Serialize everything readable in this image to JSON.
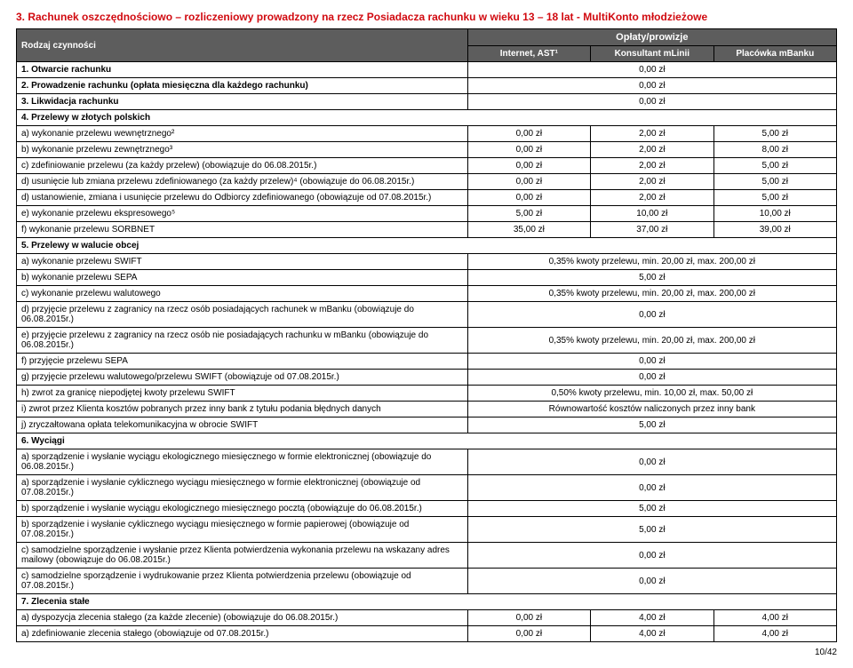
{
  "title": "3. Rachunek oszczędnościowo – rozliczeniowy prowadzony na rzecz Posiadacza rachunku w wieku 13 – 18 lat - MultiKonto młodzieżowe",
  "header": {
    "col1_row": "Rodzaj czynności",
    "top_right": "Opłaty/prowizje",
    "c2": "Internet, AST¹",
    "c3": "Konsultant mLinii",
    "c4": "Placówka mBanku"
  },
  "rows": [
    {
      "type": "section",
      "label": "1. Otwarcie rachunku",
      "wide": "0,00 zł"
    },
    {
      "type": "section",
      "label": "2. Prowadzenie rachunku (opłata miesięczna dla każdego rachunku)",
      "wide": "0,00 zł"
    },
    {
      "type": "section",
      "label": "3. Likwidacja rachunku",
      "wide": "0,00 zł"
    },
    {
      "type": "section-only",
      "label": "4. Przelewy w złotych polskich"
    },
    {
      "type": "row3",
      "label": "a) wykonanie przelewu wewnętrznego²",
      "v": [
        "0,00 zł",
        "2,00 zł",
        "5,00 zł"
      ]
    },
    {
      "type": "row3",
      "label": "b) wykonanie przelewu zewnętrznego³",
      "v": [
        "0,00 zł",
        "2,00 zł",
        "8,00 zł"
      ]
    },
    {
      "type": "row3",
      "label": "c) zdefiniowanie przelewu (za każdy przelew) (obowiązuje do 06.08.2015r.)",
      "v": [
        "0,00 zł",
        "2,00 zł",
        "5,00 zł"
      ]
    },
    {
      "type": "row3",
      "label": "d) usunięcie lub zmiana przelewu zdefiniowanego (za każdy przelew)⁴  (obowiązuje do 06.08.2015r.)",
      "v": [
        "0,00 zł",
        "2,00 zł",
        "5,00 zł"
      ]
    },
    {
      "type": "row3",
      "label": "d) ustanowienie, zmiana i usunięcie przelewu do Odbiorcy zdefiniowanego (obowiązuje od 07.08.2015r.)",
      "v": [
        "0,00 zł",
        "2,00 zł",
        "5,00 zł"
      ]
    },
    {
      "type": "row3",
      "label": "e) wykonanie przelewu ekspresowego⁵",
      "v": [
        "5,00 zł",
        "10,00 zł",
        "10,00 zł"
      ]
    },
    {
      "type": "row3",
      "label": "f) wykonanie przelewu SORBNET",
      "v": [
        "35,00 zł",
        "37,00 zł",
        "39,00 zł"
      ]
    },
    {
      "type": "section-only",
      "label": "5. Przelewy w walucie obcej"
    },
    {
      "type": "wide",
      "label": "a) wykonanie przelewu SWIFT",
      "wide": "0,35% kwoty przelewu, min. 20,00 zł, max. 200,00 zł"
    },
    {
      "type": "wide",
      "label": "b) wykonanie przelewu SEPA",
      "wide": "5,00 zł"
    },
    {
      "type": "wide",
      "label": "c) wykonanie przelewu walutowego",
      "wide": "0,35% kwoty przelewu, min. 20,00 zł, max. 200,00 zł"
    },
    {
      "type": "wide",
      "label": "d) przyjęcie przelewu z zagranicy na rzecz osób posiadających rachunek w mBanku (obowiązuje do 06.08.2015r.)",
      "wide": "0,00 zł"
    },
    {
      "type": "wide",
      "label": "e) przyjęcie przelewu z zagranicy na rzecz osób nie posiadających rachunku w mBanku (obowiązuje do 06.08.2015r.)",
      "wide": "0,35% kwoty przelewu, min. 20,00 zł, max. 200,00 zł"
    },
    {
      "type": "wide",
      "label": "f) przyjęcie przelewu SEPA",
      "wide": "0,00 zł"
    },
    {
      "type": "wide",
      "label": "g) przyjęcie przelewu walutowego/przelewu SWIFT (obowiązuje od 07.08.2015r.)",
      "wide": "0,00 zł"
    },
    {
      "type": "wide",
      "label": "h) zwrot za granicę niepodjętej kwoty przelewu SWIFT",
      "wide": "0,50% kwoty przelewu, min. 10,00 zł, max. 50,00 zł"
    },
    {
      "type": "wide",
      "label": "i) zwrot przez Klienta kosztów pobranych przez inny bank z tytułu podania błędnych danych",
      "wide": "Równowartość kosztów naliczonych przez inny bank"
    },
    {
      "type": "wide",
      "label": "j) zryczałtowana opłata telekomunikacyjna w obrocie SWIFT",
      "wide": "5,00 zł"
    },
    {
      "type": "section-only",
      "label": "6. Wyciągi"
    },
    {
      "type": "wide",
      "label": "a) sporządzenie i wysłanie wyciągu ekologicznego miesięcznego w formie elektronicznej (obowiązuje do 06.08.2015r.)",
      "wide": "0,00 zł"
    },
    {
      "type": "wide",
      "label": "a) sporządzenie i wysłanie cyklicznego wyciągu miesięcznego w formie elektronicznej (obowiązuje od 07.08.2015r.)",
      "wide": "0,00 zł"
    },
    {
      "type": "wide",
      "label": "b) sporządzenie i wysłanie wyciągu ekologicznego miesięcznego pocztą (obowiązuje do 06.08.2015r.)",
      "wide": "5,00 zł"
    },
    {
      "type": "wide",
      "label": "b) sporządzenie i wysłanie cyklicznego wyciągu miesięcznego w formie papierowej (obowiązuje od 07.08.2015r.)",
      "wide": "5,00 zł"
    },
    {
      "type": "wide",
      "label": "c) samodzielne sporządzenie i wysłanie przez Klienta potwierdzenia wykonania przelewu na wskazany adres mailowy (obowiązuje do 06.08.2015r.)",
      "wide": "0,00 zł"
    },
    {
      "type": "wide",
      "label": "c) samodzielne sporządzenie i wydrukowanie przez Klienta potwierdzenia przelewu (obowiązuje od 07.08.2015r.)",
      "wide": "0,00 zł"
    },
    {
      "type": "section-only",
      "label": "7. Zlecenia stałe"
    },
    {
      "type": "row3",
      "label": "a) dyspozycja zlecenia stałego (za każde zlecenie) (obowiązuje do 06.08.2015r.)",
      "v": [
        "0,00 zł",
        "4,00 zł",
        "4,00 zł"
      ]
    },
    {
      "type": "row3",
      "label": "a) zdefiniowanie zlecenia stałego (obowiązuje od 07.08.2015r.)",
      "v": [
        "0,00 zł",
        "4,00 zł",
        "4,00 zł"
      ]
    }
  ],
  "footer": "10/42"
}
